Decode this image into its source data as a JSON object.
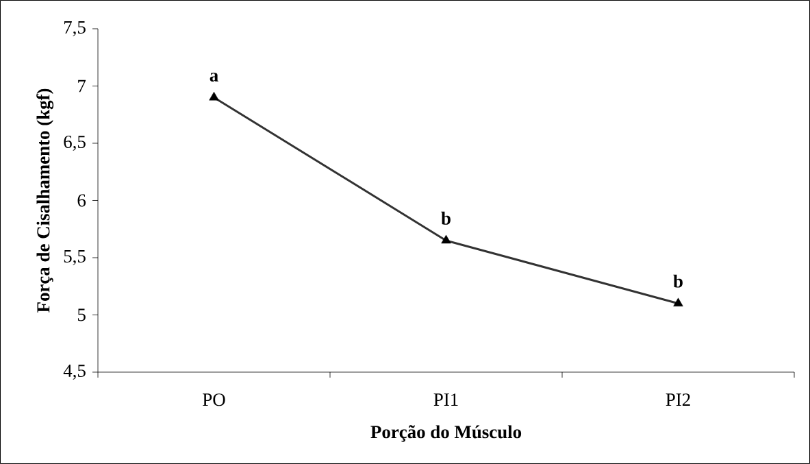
{
  "chart_data": {
    "type": "line",
    "xlabel": "Porção do Músculo",
    "ylabel": "Força de Cisalhamento (kgf)",
    "categories": [
      "PO",
      "PI1",
      "PI2"
    ],
    "series": [
      {
        "color": "#333333",
        "values": [
          6.9,
          5.65,
          5.1
        ]
      }
    ],
    "ylim": [
      4.5,
      7.5
    ],
    "yticks": [
      {
        "value": 4.5,
        "label": "4,5"
      },
      5,
      {
        "value": 5.5,
        "label": "5,5"
      },
      6,
      {
        "value": 6.5,
        "label": "6,5"
      },
      7,
      {
        "value": 7.5,
        "label": "7,5"
      }
    ],
    "marker": "triangle",
    "annotations": [
      {
        "text": "a",
        "x": "PO",
        "y": 6.9
      },
      {
        "text": "b",
        "x": "PI1",
        "y": 5.65
      },
      {
        "text": "b",
        "x": "PI2",
        "y": 5.1
      }
    ]
  }
}
